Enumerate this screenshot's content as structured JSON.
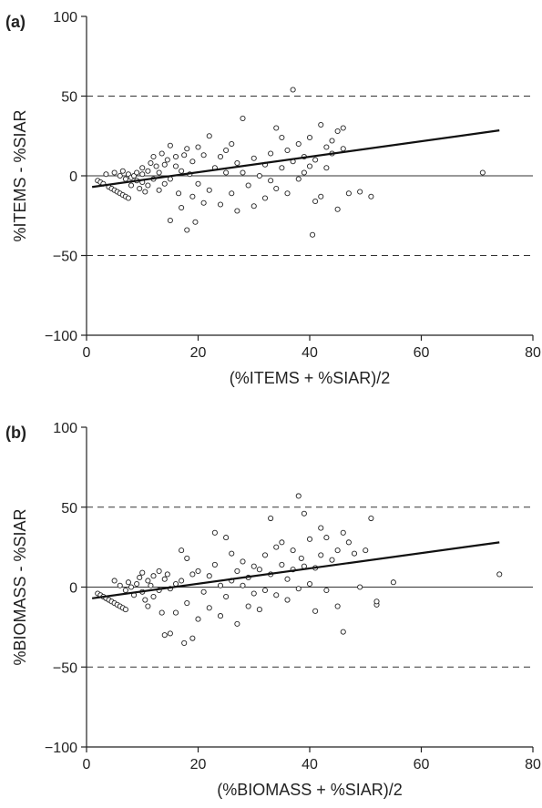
{
  "chart_data": [
    {
      "type": "scatter",
      "panel_label": "(a)",
      "xlabel": "(%ITEMS + %SIAR)/2",
      "ylabel": "%ITEMS - %SIAR",
      "xlim": [
        0,
        80
      ],
      "ylim": [
        -100,
        100
      ],
      "xticks": [
        0,
        20,
        40,
        60,
        80
      ],
      "yticks": [
        -100,
        -50,
        0,
        50,
        100
      ],
      "xtick_labels": [
        "0",
        "20",
        "40",
        "60",
        "80"
      ],
      "ytick_labels": [
        "−100",
        "−50",
        "0",
        "50",
        "100"
      ],
      "reference_lines": {
        "zero": 0,
        "limits": [
          -50,
          50
        ]
      },
      "regression_line": {
        "x": [
          1.0,
          74.0
        ],
        "y": [
          -7.0,
          28.5
        ]
      },
      "points": [
        [
          2,
          -3
        ],
        [
          2.5,
          -4
        ],
        [
          3,
          -5
        ],
        [
          3.5,
          1
        ],
        [
          4,
          -7
        ],
        [
          4.5,
          -8
        ],
        [
          5,
          -9
        ],
        [
          5.5,
          -10
        ],
        [
          6,
          -11
        ],
        [
          6.5,
          -12
        ],
        [
          7,
          -13
        ],
        [
          7.5,
          -14
        ],
        [
          5,
          2
        ],
        [
          6,
          0
        ],
        [
          6.5,
          3
        ],
        [
          7,
          -2
        ],
        [
          7.5,
          1
        ],
        [
          8,
          -1
        ],
        [
          8,
          -6
        ],
        [
          8.5,
          0
        ],
        [
          9,
          -3
        ],
        [
          9,
          2
        ],
        [
          9.5,
          -8
        ],
        [
          10,
          1
        ],
        [
          10,
          5
        ],
        [
          10,
          -4
        ],
        [
          10.5,
          -10
        ],
        [
          11,
          3
        ],
        [
          11,
          -6
        ],
        [
          11.5,
          8
        ],
        [
          12,
          -2
        ],
        [
          12,
          12
        ],
        [
          12.5,
          6
        ],
        [
          13,
          2
        ],
        [
          13,
          -9
        ],
        [
          13.5,
          14
        ],
        [
          14,
          7
        ],
        [
          14,
          -5
        ],
        [
          14.5,
          10
        ],
        [
          15,
          -28
        ],
        [
          15,
          -2
        ],
        [
          15,
          19
        ],
        [
          16,
          6
        ],
        [
          16,
          12
        ],
        [
          16.5,
          -11
        ],
        [
          17,
          3
        ],
        [
          17,
          -20
        ],
        [
          17.5,
          13
        ],
        [
          18,
          17
        ],
        [
          18,
          -34
        ],
        [
          18.5,
          1
        ],
        [
          19,
          9
        ],
        [
          19,
          -13
        ],
        [
          19.5,
          -29
        ],
        [
          20,
          18
        ],
        [
          20,
          -5
        ],
        [
          21,
          -17
        ],
        [
          21,
          13
        ],
        [
          22,
          25
        ],
        [
          22,
          -9
        ],
        [
          23,
          5
        ],
        [
          24,
          12
        ],
        [
          24,
          -18
        ],
        [
          25,
          2
        ],
        [
          25,
          16
        ],
        [
          26,
          -11
        ],
        [
          26,
          20
        ],
        [
          27,
          8
        ],
        [
          27,
          -22
        ],
        [
          28,
          36
        ],
        [
          28,
          2
        ],
        [
          29,
          -6
        ],
        [
          30,
          11
        ],
        [
          30,
          -19
        ],
        [
          31,
          0
        ],
        [
          32,
          7
        ],
        [
          32,
          -14
        ],
        [
          33,
          14
        ],
        [
          33,
          -3
        ],
        [
          34,
          30
        ],
        [
          34,
          -8
        ],
        [
          35,
          5
        ],
        [
          35,
          24
        ],
        [
          36,
          -11
        ],
        [
          36,
          16
        ],
        [
          37,
          9
        ],
        [
          37,
          54
        ],
        [
          38,
          -2
        ],
        [
          38,
          20
        ],
        [
          39,
          12
        ],
        [
          39,
          2
        ],
        [
          40,
          6
        ],
        [
          40,
          24
        ],
        [
          40.5,
          -37
        ],
        [
          41,
          -16
        ],
        [
          41,
          10
        ],
        [
          42,
          32
        ],
        [
          42,
          -13
        ],
        [
          43,
          18
        ],
        [
          43,
          5
        ],
        [
          44,
          14
        ],
        [
          44,
          22
        ],
        [
          45,
          -21
        ],
        [
          45,
          28
        ],
        [
          46,
          17
        ],
        [
          46,
          30
        ],
        [
          47,
          -11
        ],
        [
          49,
          -10
        ],
        [
          51,
          -13
        ],
        [
          71,
          2
        ]
      ]
    },
    {
      "type": "scatter",
      "panel_label": "(b)",
      "xlabel": "(%BIOMASS + %SIAR)/2",
      "ylabel": "%BIOMASS - %SIAR",
      "xlim": [
        0,
        80
      ],
      "ylim": [
        -100,
        100
      ],
      "xticks": [
        0,
        20,
        40,
        60,
        80
      ],
      "yticks": [
        -100,
        -50,
        0,
        50,
        100
      ],
      "xtick_labels": [
        "0",
        "20",
        "40",
        "60",
        "80"
      ],
      "ytick_labels": [
        "−100",
        "−50",
        "0",
        "50",
        "100"
      ],
      "reference_lines": {
        "zero": 0,
        "limits": [
          -50,
          50
        ]
      },
      "regression_line": {
        "x": [
          1.0,
          74.0
        ],
        "y": [
          -7.0,
          28.0
        ]
      },
      "points": [
        [
          2,
          -4
        ],
        [
          2.5,
          -5
        ],
        [
          3,
          -6
        ],
        [
          3.5,
          -7
        ],
        [
          4,
          -8
        ],
        [
          4.5,
          -9
        ],
        [
          5,
          -10
        ],
        [
          5.5,
          -11
        ],
        [
          6,
          -12
        ],
        [
          6.5,
          -13
        ],
        [
          7,
          -14
        ],
        [
          5,
          4
        ],
        [
          6,
          1
        ],
        [
          7,
          -2
        ],
        [
          7.5,
          3
        ],
        [
          8,
          0
        ],
        [
          8.5,
          -5
        ],
        [
          9,
          2
        ],
        [
          9.5,
          6
        ],
        [
          10,
          -3
        ],
        [
          10,
          9
        ],
        [
          10.5,
          -8
        ],
        [
          11,
          4
        ],
        [
          11,
          -12
        ],
        [
          11.5,
          1
        ],
        [
          12,
          7
        ],
        [
          12,
          -6
        ],
        [
          13,
          10
        ],
        [
          13,
          -2
        ],
        [
          13.5,
          -16
        ],
        [
          14,
          5
        ],
        [
          14,
          -30
        ],
        [
          14.5,
          8
        ],
        [
          15,
          -29
        ],
        [
          15,
          -1
        ],
        [
          16,
          -16
        ],
        [
          16,
          2
        ],
        [
          17,
          23
        ],
        [
          17,
          4
        ],
        [
          17.5,
          -35
        ],
        [
          18,
          18
        ],
        [
          18,
          -10
        ],
        [
          19,
          8
        ],
        [
          19,
          -32
        ],
        [
          20,
          -20
        ],
        [
          20,
          10
        ],
        [
          21,
          -3
        ],
        [
          22,
          7
        ],
        [
          22,
          -13
        ],
        [
          23,
          34
        ],
        [
          23,
          14
        ],
        [
          24,
          1
        ],
        [
          24,
          -18
        ],
        [
          25,
          31
        ],
        [
          25,
          -6
        ],
        [
          26,
          21
        ],
        [
          26,
          4
        ],
        [
          27,
          10
        ],
        [
          27,
          -23
        ],
        [
          28,
          1
        ],
        [
          28,
          16
        ],
        [
          29,
          -12
        ],
        [
          29,
          6
        ],
        [
          30,
          13
        ],
        [
          30,
          -4
        ],
        [
          31,
          11
        ],
        [
          31,
          -14
        ],
        [
          32,
          20
        ],
        [
          32,
          -2
        ],
        [
          33,
          43
        ],
        [
          33,
          8
        ],
        [
          34,
          25
        ],
        [
          34,
          -5
        ],
        [
          35,
          14
        ],
        [
          35,
          28
        ],
        [
          36,
          -8
        ],
        [
          36,
          5
        ],
        [
          37,
          23
        ],
        [
          37,
          11
        ],
        [
          38,
          57
        ],
        [
          38,
          -1
        ],
        [
          38.5,
          18
        ],
        [
          39,
          46
        ],
        [
          39,
          13
        ],
        [
          40,
          2
        ],
        [
          40,
          30
        ],
        [
          41,
          12
        ],
        [
          41,
          -15
        ],
        [
          42,
          37
        ],
        [
          42,
          20
        ],
        [
          43,
          31
        ],
        [
          43,
          -2
        ],
        [
          44,
          17
        ],
        [
          45,
          -12
        ],
        [
          45,
          23
        ],
        [
          46,
          -28
        ],
        [
          46,
          34
        ],
        [
          47,
          28
        ],
        [
          48,
          21
        ],
        [
          49,
          0
        ],
        [
          50,
          23
        ],
        [
          51,
          43
        ],
        [
          52,
          -11
        ],
        [
          52,
          -9
        ],
        [
          55,
          3
        ],
        [
          74,
          8
        ]
      ]
    }
  ]
}
